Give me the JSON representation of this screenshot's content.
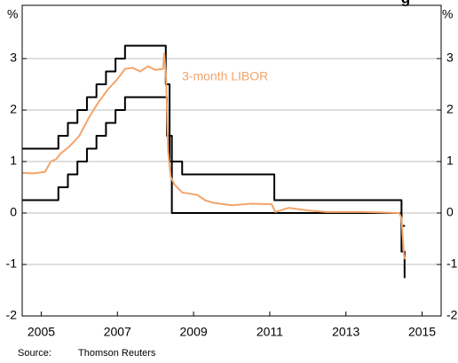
{
  "chart_data": {
    "type": "line",
    "title": "g",
    "y_unit_left": "%",
    "y_unit_right": "%",
    "source_label": "Source:",
    "source": "Thomson Reuters",
    "annotation": "3-month LIBOR",
    "xlim": [
      2005,
      2016
    ],
    "xticks": [
      {
        "value": 2005.5,
        "label": "2005"
      },
      {
        "value": 2007.5,
        "label": "2007"
      },
      {
        "value": 2009.5,
        "label": "2009"
      },
      {
        "value": 2011.5,
        "label": "2011"
      },
      {
        "value": 2013.5,
        "label": "2013"
      },
      {
        "value": 2015.5,
        "label": "2015"
      }
    ],
    "ylim": [
      -2,
      4
    ],
    "yticks": [
      -2,
      -1,
      0,
      1,
      2,
      3
    ],
    "grid": true,
    "series": [
      {
        "color": "#000000",
        "x": [
          2005,
          2005.95,
          2005.95,
          2006.2,
          2006.2,
          2006.45,
          2006.45,
          2006.7,
          2006.7,
          2006.95,
          2006.95,
          2007.2,
          2007.2,
          2007.45,
          2007.45,
          2007.7,
          2007.7,
          2008.77,
          2008.77,
          2008.87,
          2008.87,
          2009.2,
          2009.2,
          2011.62,
          2011.62,
          2014.96,
          2014.96,
          2015.05
        ],
        "values": [
          1.25,
          1.25,
          1.5,
          1.5,
          1.75,
          1.75,
          2.0,
          2.0,
          2.25,
          2.25,
          2.5,
          2.5,
          2.75,
          2.75,
          3.0,
          3.0,
          3.25,
          3.25,
          2.5,
          2.5,
          1.0,
          1.0,
          0.75,
          0.75,
          0.25,
          0.25,
          -0.25,
          -0.25
        ]
      },
      {
        "color": "#000000",
        "x": [
          2005,
          2005.95,
          2005.95,
          2006.2,
          2006.2,
          2006.45,
          2006.45,
          2006.7,
          2006.7,
          2006.95,
          2006.95,
          2007.2,
          2007.2,
          2007.45,
          2007.45,
          2007.7,
          2007.7,
          2008.8,
          2008.8,
          2008.93,
          2008.93,
          2014.96,
          2014.96,
          2015.04,
          2015.04,
          2015.06
        ],
        "values": [
          0.25,
          0.25,
          0.5,
          0.5,
          0.75,
          0.75,
          1.0,
          1.0,
          1.25,
          1.25,
          1.5,
          1.5,
          1.75,
          1.75,
          2.0,
          2.0,
          2.25,
          2.25,
          1.5,
          1.5,
          0.0,
          0.0,
          -0.75,
          -0.75,
          -1.25,
          -1.25
        ]
      },
      {
        "color": "#f4a46a",
        "x": [
          2005,
          2005.3,
          2005.6,
          2005.75,
          2005.9,
          2006.0,
          2006.25,
          2006.5,
          2006.75,
          2007.0,
          2007.25,
          2007.5,
          2007.7,
          2007.9,
          2008.1,
          2008.3,
          2008.5,
          2008.7,
          2008.73,
          2008.78,
          2008.83,
          2008.9,
          2009.0,
          2009.2,
          2009.6,
          2009.8,
          2010.0,
          2010.5,
          2011.0,
          2011.55,
          2011.65,
          2012.0,
          2012.5,
          2013.0,
          2014.0,
          2014.9,
          2014.96,
          2015.02,
          2015.05
        ],
        "values": [
          0.78,
          0.77,
          0.8,
          1.0,
          1.05,
          1.15,
          1.3,
          1.5,
          1.85,
          2.15,
          2.4,
          2.6,
          2.8,
          2.82,
          2.75,
          2.85,
          2.78,
          2.8,
          3.1,
          2.6,
          1.2,
          0.7,
          0.55,
          0.4,
          0.35,
          0.25,
          0.2,
          0.15,
          0.18,
          0.17,
          0.02,
          0.1,
          0.05,
          0.02,
          0.02,
          0.0,
          -0.1,
          -0.8,
          -0.9
        ]
      }
    ]
  }
}
